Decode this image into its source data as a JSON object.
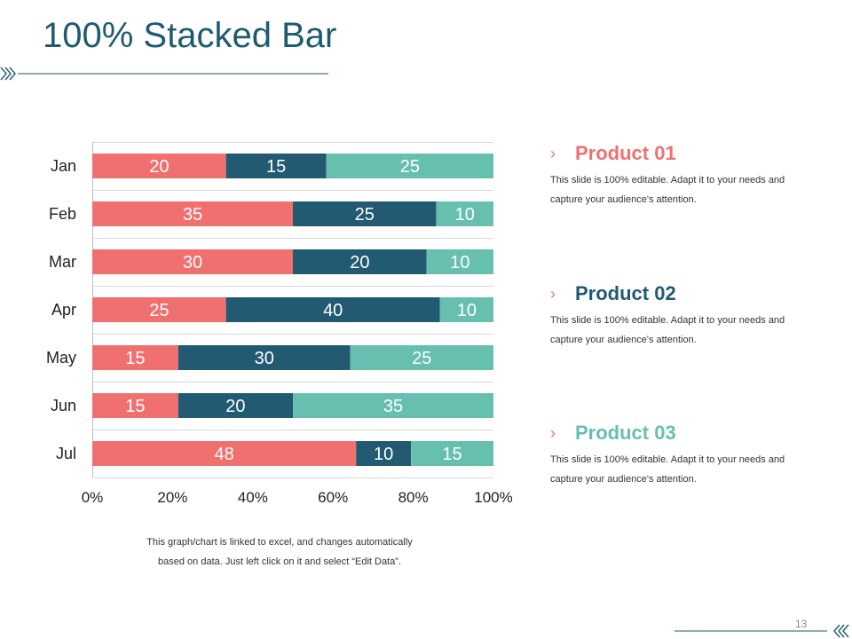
{
  "slide": {
    "title": "100% Stacked Bar",
    "note_line1": "This graph/chart is linked to excel,  and changes automatically",
    "note_line2": "based on data. Just left click on it and select “Edit Data”.",
    "page_number": "13"
  },
  "colors": {
    "product1": "#f07070",
    "product2": "#215a71",
    "product3": "#67bfb0",
    "accent_line": "#1f5a72"
  },
  "legend": [
    {
      "chevron": "›",
      "name": "Product 01",
      "desc1": "This slide is 100% editable. Adapt it to your needs and",
      "desc2": "capture your audience's attention."
    },
    {
      "chevron": "›",
      "name": "Product 02",
      "desc1": "This slide is 100% editable. Adapt it to your needs and",
      "desc2": "capture your audience's attention."
    },
    {
      "chevron": "›",
      "name": "Product 03",
      "desc1": "This slide is 100% editable. Adapt it to your needs and",
      "desc2": "capture your audience's attention."
    }
  ],
  "chart_data": {
    "type": "bar",
    "orientation": "horizontal",
    "stacking": "percent",
    "title": "100% Stacked Bar",
    "categories": [
      "Jan",
      "Feb",
      "Mar",
      "Apr",
      "May",
      "Jun",
      "Jul"
    ],
    "series": [
      {
        "name": "Product 01",
        "values": [
          20,
          35,
          30,
          25,
          15,
          15,
          48
        ]
      },
      {
        "name": "Product 02",
        "values": [
          15,
          25,
          20,
          40,
          30,
          20,
          10
        ]
      },
      {
        "name": "Product 03",
        "values": [
          25,
          10,
          10,
          10,
          25,
          35,
          15
        ]
      }
    ],
    "xticks": [
      "0%",
      "20%",
      "40%",
      "60%",
      "80%",
      "100%"
    ],
    "xlim": [
      0,
      100
    ],
    "grid": true,
    "data_labels": true,
    "legend_position": "right"
  }
}
